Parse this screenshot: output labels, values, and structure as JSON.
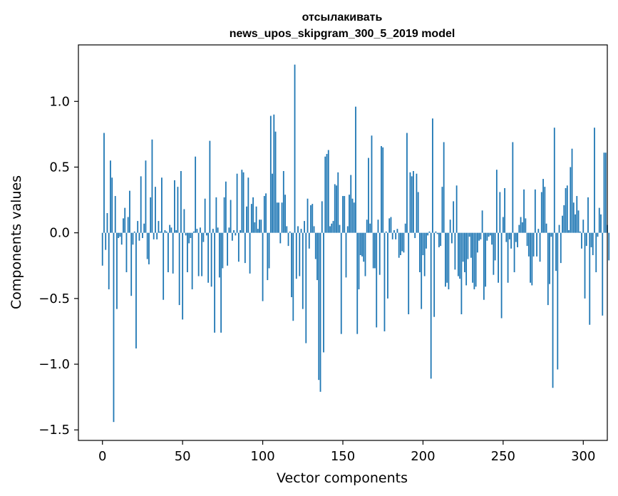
{
  "chart_data": {
    "type": "bar",
    "title_line1": "отсылакивать",
    "title_line2": "news_upos_skipgram_300_5_2019 model",
    "xlabel": "Vector components",
    "ylabel": "Components values",
    "xlim": [
      -15,
      315
    ],
    "ylim": [
      -1.58,
      1.43
    ],
    "xticks": [
      0,
      50,
      100,
      150,
      200,
      250,
      300
    ],
    "yticks": [
      -1.5,
      -1.0,
      -0.5,
      0.0,
      0.5,
      1.0
    ],
    "ytick_labels": [
      "−1.5",
      "−1.0",
      "−0.5",
      "0.0",
      "0.5",
      "1.0"
    ],
    "bar_color": "#1f77b4",
    "values": [
      -0.25,
      0.76,
      -0.13,
      0.15,
      -0.43,
      0.55,
      0.42,
      -1.44,
      0.28,
      -0.58,
      -0.04,
      -0.03,
      -0.09,
      0.11,
      0.19,
      -0.3,
      0.12,
      0.32,
      -0.48,
      -0.09,
      0.01,
      -0.88,
      0.09,
      -0.06,
      0.43,
      -0.04,
      0.07,
      0.55,
      -0.2,
      -0.24,
      0.27,
      0.71,
      -0.05,
      0.35,
      -0.05,
      0.09,
      0.01,
      0.42,
      -0.51,
      0.02,
      0.01,
      -0.3,
      0.06,
      0.04,
      -0.31,
      0.4,
      0.02,
      0.35,
      -0.55,
      0.47,
      -0.66,
      0.18,
      -0.02,
      -0.3,
      -0.08,
      -0.04,
      -0.43,
      0.01,
      0.58,
      0.03,
      -0.33,
      0.04,
      -0.33,
      -0.07,
      0.26,
      -0.02,
      -0.38,
      0.7,
      -0.41,
      0.03,
      -0.76,
      0.27,
      0.04,
      -0.34,
      -0.76,
      -0.27,
      0.27,
      0.39,
      -0.25,
      0.04,
      0.25,
      -0.06,
      0.02,
      -0.02,
      0.45,
      -0.22,
      0.02,
      0.48,
      0.46,
      -0.23,
      0.2,
      0.42,
      -0.31,
      0.22,
      0.27,
      0.08,
      0.2,
      0.03,
      0.1,
      0.1,
      -0.52,
      0.28,
      0.3,
      -0.36,
      -0.27,
      0.89,
      0.45,
      0.9,
      0.77,
      0.23,
      0.23,
      -0.08,
      0.23,
      0.47,
      0.29,
      0.05,
      -0.1,
      0.01,
      -0.49,
      -0.67,
      1.28,
      -0.35,
      0.05,
      -0.33,
      0.03,
      -0.58,
      0.09,
      -0.84,
      0.26,
      -0.12,
      0.21,
      0.22,
      0.05,
      -0.2,
      -0.36,
      -1.12,
      -1.21,
      0.24,
      -0.91,
      0.58,
      0.6,
      0.63,
      0.05,
      0.07,
      0.09,
      0.37,
      0.36,
      0.46,
      0.06,
      -0.77,
      0.28,
      0.28,
      -0.34,
      0.05,
      0.29,
      0.44,
      0.26,
      0.23,
      0.96,
      -0.77,
      -0.43,
      -0.17,
      -0.18,
      -0.22,
      -0.33,
      0.1,
      0.57,
      0.07,
      0.74,
      -0.27,
      -0.27,
      -0.72,
      0.1,
      -0.32,
      0.66,
      0.65,
      -0.75,
      0.01,
      -0.5,
      0.11,
      0.12,
      -0.05,
      0.02,
      -0.05,
      0.03,
      -0.19,
      -0.17,
      -0.14,
      -0.15,
      0.07,
      0.76,
      -0.62,
      0.46,
      0.43,
      0.47,
      -0.04,
      0.45,
      0.31,
      -0.3,
      -0.58,
      -0.17,
      -0.33,
      -0.12,
      -0.02,
      0.01,
      -1.11,
      0.87,
      -0.64,
      0.01,
      -0.01,
      -0.11,
      -0.1,
      0.35,
      0.69,
      -0.41,
      -0.38,
      -0.43,
      0.1,
      -0.08,
      0.24,
      -0.28,
      0.36,
      -0.33,
      -0.35,
      -0.62,
      -0.22,
      -0.3,
      -0.4,
      -0.2,
      -0.03,
      -0.19,
      -0.38,
      -0.43,
      -0.41,
      -0.15,
      -0.06,
      -0.05,
      0.17,
      -0.51,
      -0.41,
      -0.06,
      -0.03,
      -0.02,
      -0.09,
      -0.32,
      -0.21,
      0.48,
      -0.38,
      0.31,
      -0.65,
      0.12,
      0.34,
      -0.07,
      -0.38,
      -0.05,
      -0.12,
      0.69,
      -0.3,
      -0.07,
      -0.11,
      0.06,
      0.12,
      0.08,
      0.33,
      0.11,
      -0.1,
      -0.18,
      -0.38,
      -0.4,
      -0.18,
      0.33,
      -0.18,
      0.03,
      -0.22,
      0.31,
      0.41,
      0.35,
      0.07,
      -0.55,
      -0.39,
      -0.03,
      -1.18,
      0.8,
      -0.29,
      -1.04,
      0.06,
      -0.23,
      0.13,
      0.21,
      0.34,
      0.36,
      0.02,
      0.5,
      0.64,
      0.23,
      0.14,
      0.28,
      0.17,
      0.01,
      -0.12,
      0.1,
      -0.5,
      -0.1,
      0.27,
      -0.7,
      -0.11,
      -0.17,
      0.8,
      -0.3,
      -0.03,
      0.19,
      0.14,
      -0.63,
      0.61,
      0.61,
      0.06,
      -0.21
    ]
  }
}
